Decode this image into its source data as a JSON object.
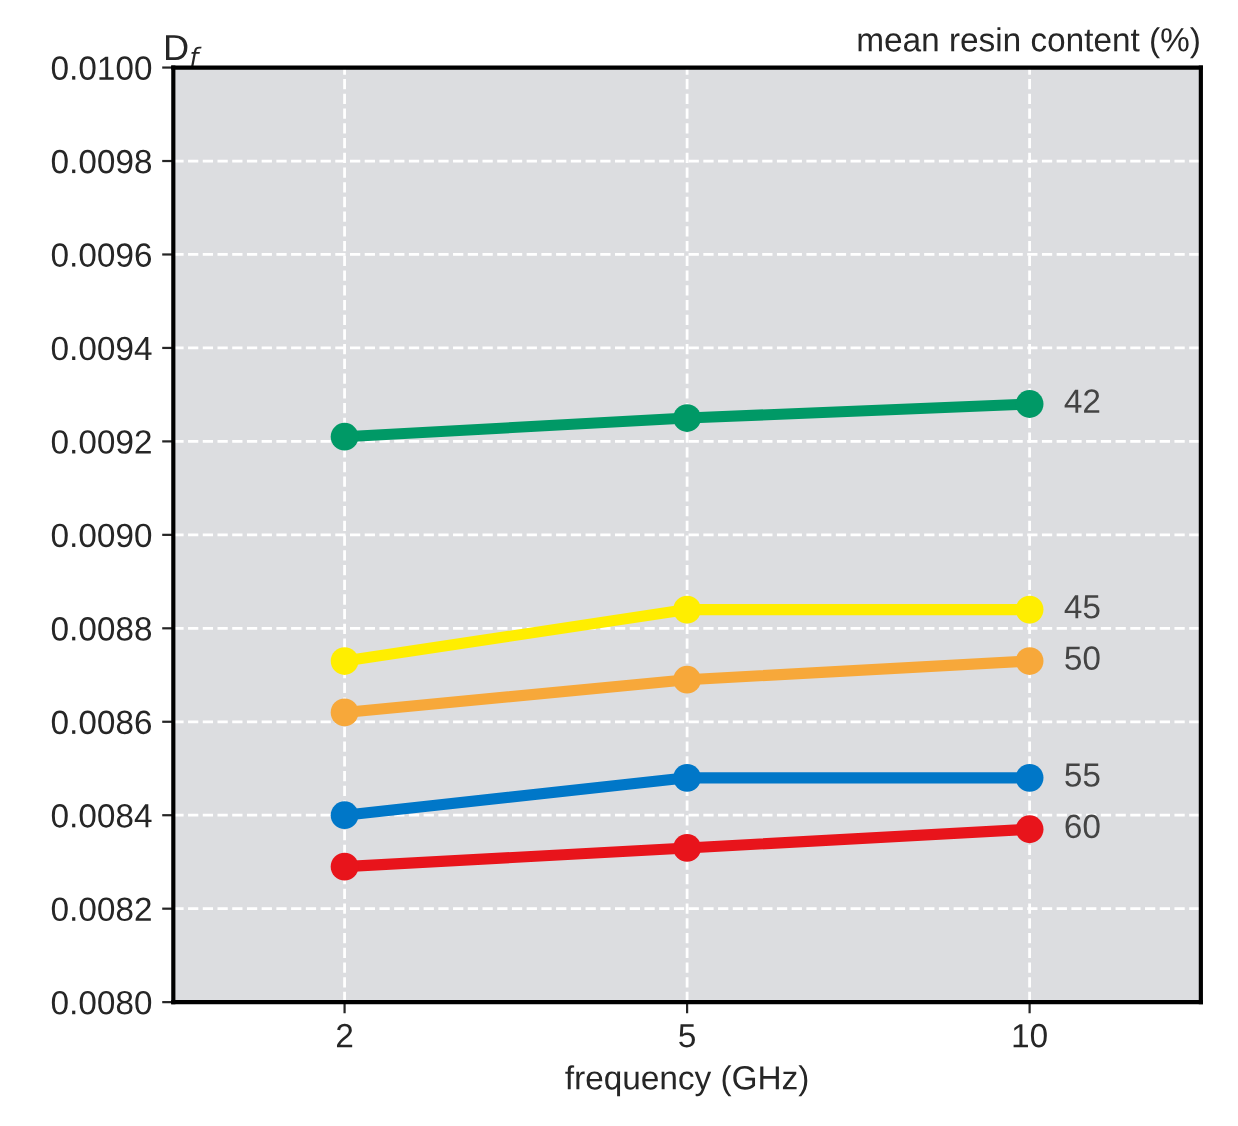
{
  "chart_data": {
    "type": "line",
    "ylabel": "D$_{f}$",
    "xlabel": "frequency (GHz)",
    "annotations": [
      "mean resin content (%)"
    ],
    "categories": [
      "2",
      "5",
      "10"
    ],
    "series": [
      {
        "name": "42",
        "color": "#009966",
        "values": [
          0.00921,
          0.00925,
          0.00928
        ]
      },
      {
        "name": "45",
        "color": "#ffee00",
        "values": [
          0.00873,
          0.00884,
          0.00884
        ]
      },
      {
        "name": "50",
        "color": "#f7a83a",
        "values": [
          0.00862,
          0.00869,
          0.00873
        ]
      },
      {
        "name": "55",
        "color": "#0077c8",
        "values": [
          0.0084,
          0.00848,
          0.00848
        ]
      },
      {
        "name": "60",
        "color": "#e8141b",
        "values": [
          0.00829,
          0.00833,
          0.00837
        ]
      }
    ],
    "ylim": [
      0.008,
      0.01
    ],
    "yticks": [
      {
        "value": 0.008,
        "label": "0.0080"
      },
      {
        "value": 0.0082,
        "label": "0.0082"
      },
      {
        "value": 0.0084,
        "label": "0.0084"
      },
      {
        "value": 0.0086,
        "label": "0.0086"
      },
      {
        "value": 0.0088,
        "label": "0.0088"
      },
      {
        "value": 0.009,
        "label": "0.0090"
      },
      {
        "value": 0.0092,
        "label": "0.0092"
      },
      {
        "value": 0.0094,
        "label": "0.0094"
      },
      {
        "value": 0.0096,
        "label": "0.0096"
      },
      {
        "value": 0.0098,
        "label": "0.0098"
      },
      {
        "value": 0.01,
        "label": "0.0100"
      }
    ],
    "grid": true,
    "legend": false,
    "marker": "circle",
    "line_style": "solid"
  }
}
